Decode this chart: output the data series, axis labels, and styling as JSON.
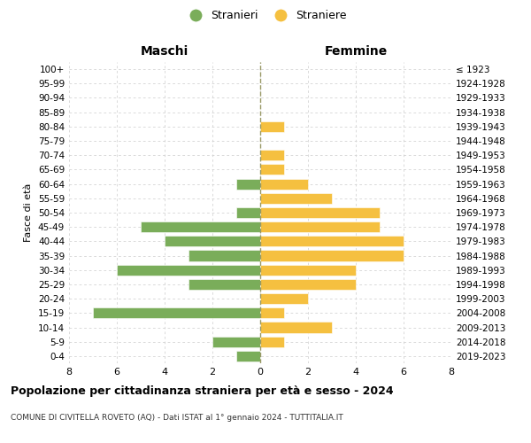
{
  "age_groups": [
    "0-4",
    "5-9",
    "10-14",
    "15-19",
    "20-24",
    "25-29",
    "30-34",
    "35-39",
    "40-44",
    "45-49",
    "50-54",
    "55-59",
    "60-64",
    "65-69",
    "70-74",
    "75-79",
    "80-84",
    "85-89",
    "90-94",
    "95-99",
    "100+"
  ],
  "birth_years": [
    "2019-2023",
    "2014-2018",
    "2009-2013",
    "2004-2008",
    "1999-2003",
    "1994-1998",
    "1989-1993",
    "1984-1988",
    "1979-1983",
    "1974-1978",
    "1969-1973",
    "1964-1968",
    "1959-1963",
    "1954-1958",
    "1949-1953",
    "1944-1948",
    "1939-1943",
    "1934-1938",
    "1929-1933",
    "1924-1928",
    "≤ 1923"
  ],
  "maschi": [
    1,
    2,
    0,
    7,
    0,
    3,
    6,
    3,
    4,
    5,
    1,
    0,
    1,
    0,
    0,
    0,
    0,
    0,
    0,
    0,
    0
  ],
  "femmine": [
    0,
    1,
    3,
    1,
    2,
    4,
    4,
    6,
    6,
    5,
    5,
    3,
    2,
    1,
    1,
    0,
    1,
    0,
    0,
    0,
    0
  ],
  "male_color": "#7aad5a",
  "female_color": "#f5c040",
  "center_line_color": "#999966",
  "grid_color": "#cccccc",
  "background_color": "#ffffff",
  "title": "Popolazione per cittadinanza straniera per età e sesso - 2024",
  "subtitle": "COMUNE DI CIVITELLA ROVETO (AQ) - Dati ISTAT al 1° gennaio 2024 - TUTTITALIA.IT",
  "left_label": "Maschi",
  "right_label": "Femmine",
  "yleft_label": "Fasce di età",
  "legend_male": "Stranieri",
  "legend_female": "Straniere",
  "xlim": 8
}
